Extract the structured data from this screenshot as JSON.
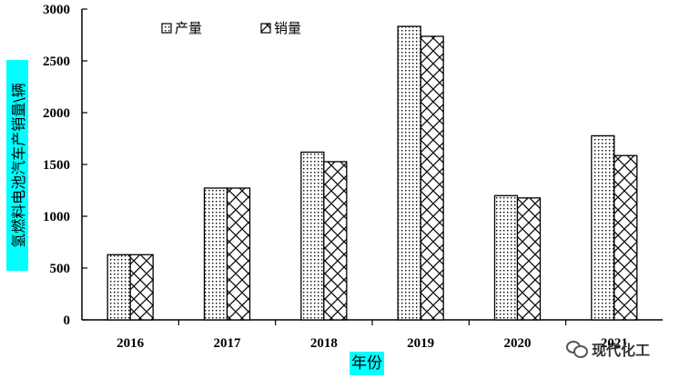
{
  "chart_data": {
    "type": "bar",
    "categories": [
      "2016",
      "2017",
      "2018",
      "2019",
      "2020",
      "2021"
    ],
    "series": [
      {
        "name": "产量",
        "values": [
          629,
          1272,
          1619,
          2833,
          1199,
          1777
        ]
      },
      {
        "name": "销量",
        "values": [
          629,
          1272,
          1527,
          2737,
          1177,
          1586
        ]
      }
    ],
    "ylim": [
      0,
      3000
    ],
    "yticks": [
      0,
      500,
      1000,
      1500,
      2000,
      2500,
      3000
    ],
    "xlabel": "年份",
    "ylabel": "氢燃料电池汽车产销量\\辆",
    "legend_position": "top-left",
    "grid": false
  },
  "watermark": {
    "text": "现代化工",
    "icon": "wechat-icon"
  }
}
